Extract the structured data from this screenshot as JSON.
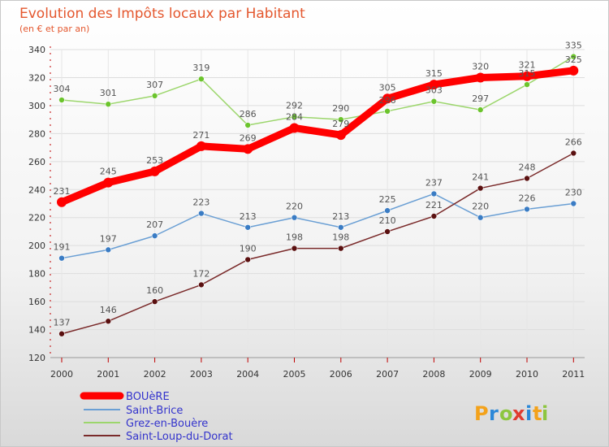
{
  "chart_data": {
    "type": "line",
    "title": "Evolution des Impôts locaux par Habitant",
    "subtitle": "(en € et par an)",
    "x": [
      "2000",
      "2001",
      "2002",
      "2003",
      "2004",
      "2005",
      "2006",
      "2007",
      "2008",
      "2009",
      "2010",
      "2011"
    ],
    "ylim": [
      120,
      340
    ],
    "yticks": [
      120,
      140,
      160,
      180,
      200,
      220,
      240,
      260,
      280,
      300,
      320,
      340
    ],
    "grid": true,
    "series": [
      {
        "name": "BOUèRE",
        "color": "#ff0000",
        "values": [
          231,
          245,
          253,
          271,
          269,
          284,
          279,
          305,
          315,
          320,
          321,
          325
        ]
      },
      {
        "name": "Saint-Brice",
        "color": "#6a9fd4",
        "values": [
          191,
          197,
          207,
          223,
          213,
          220,
          213,
          225,
          237,
          220,
          226,
          230
        ]
      },
      {
        "name": "Grez-en-Bouère",
        "color": "#8ed45a",
        "values": [
          304,
          301,
          307,
          319,
          286,
          292,
          290,
          296,
          303,
          297,
          315,
          335
        ]
      },
      {
        "name": "Saint-Loup-du-Dorat",
        "color": "#6e1c1c",
        "values": [
          137,
          146,
          160,
          172,
          190,
          198,
          198,
          210,
          221,
          241,
          248,
          266
        ]
      }
    ]
  },
  "logo": {
    "letters": [
      "P",
      "r",
      "o",
      "x",
      "i",
      "t",
      "i"
    ],
    "colors": [
      "#f3a21b",
      "#2b88d8",
      "#8dc63f",
      "#e03c31",
      "#2b88d8",
      "#f3a21b",
      "#8dc63f"
    ]
  }
}
